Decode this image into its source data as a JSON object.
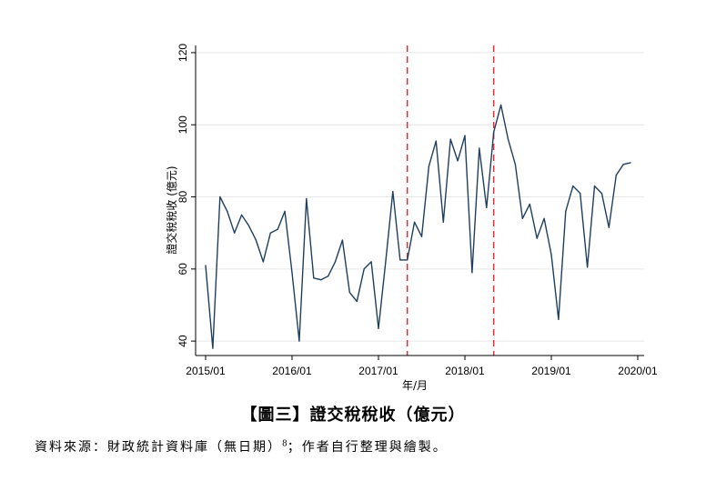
{
  "chart_data": {
    "type": "line",
    "xlabel": "年/月",
    "ylabel": "證交稅稅收 (億元)",
    "ylim": [
      36,
      122
    ],
    "yticks": [
      40,
      60,
      80,
      100,
      120
    ],
    "xlim": [
      0,
      61
    ],
    "xticks": [
      {
        "pos": 0,
        "label": "2015/01"
      },
      {
        "pos": 12,
        "label": "2016/01"
      },
      {
        "pos": 24,
        "label": "2017/01"
      },
      {
        "pos": 36,
        "label": "2018/01"
      },
      {
        "pos": 48,
        "label": "2019/01"
      },
      {
        "pos": 60,
        "label": "2020/01"
      }
    ],
    "grid": "horizontal",
    "series_color": "#1f3f5f",
    "vline_color": "#e0303a",
    "vlines": [
      28,
      40
    ],
    "series": [
      {
        "x": [
          0,
          1,
          2,
          3,
          4,
          5,
          6,
          7,
          8,
          9,
          10,
          11,
          12,
          13,
          14,
          15,
          16,
          17,
          18,
          19,
          20,
          21,
          22,
          23,
          24,
          25,
          26,
          27,
          28,
          29,
          30,
          31,
          32,
          33,
          34,
          35,
          36,
          37,
          38,
          39,
          40,
          41,
          42,
          43,
          44,
          45,
          46,
          47,
          48,
          49,
          50,
          51,
          52,
          53,
          54,
          55,
          56,
          57,
          58,
          59
        ],
        "y": [
          61,
          38,
          80,
          76,
          70,
          75,
          72,
          68,
          62,
          70,
          71,
          76,
          59,
          40,
          79.5,
          57.5,
          57,
          58,
          62,
          68,
          53.5,
          51,
          60,
          62,
          43.5,
          62,
          81.5,
          62.5,
          62.5,
          73,
          69,
          88.5,
          95.5,
          73,
          96,
          90,
          97,
          59,
          93.5,
          77,
          98,
          105.5,
          96,
          89,
          74,
          78,
          68.5,
          74,
          64,
          46,
          76,
          83,
          81,
          60.5,
          83,
          81,
          71.5,
          86,
          89,
          89.5
        ]
      }
    ]
  },
  "caption": "【圖三】證交稅稅收（億元）",
  "source": {
    "prefix": "資料來源：財政統計資料庫（無日期）",
    "footnote": "8",
    "suffix": "；作者自行整理與繪製。"
  }
}
